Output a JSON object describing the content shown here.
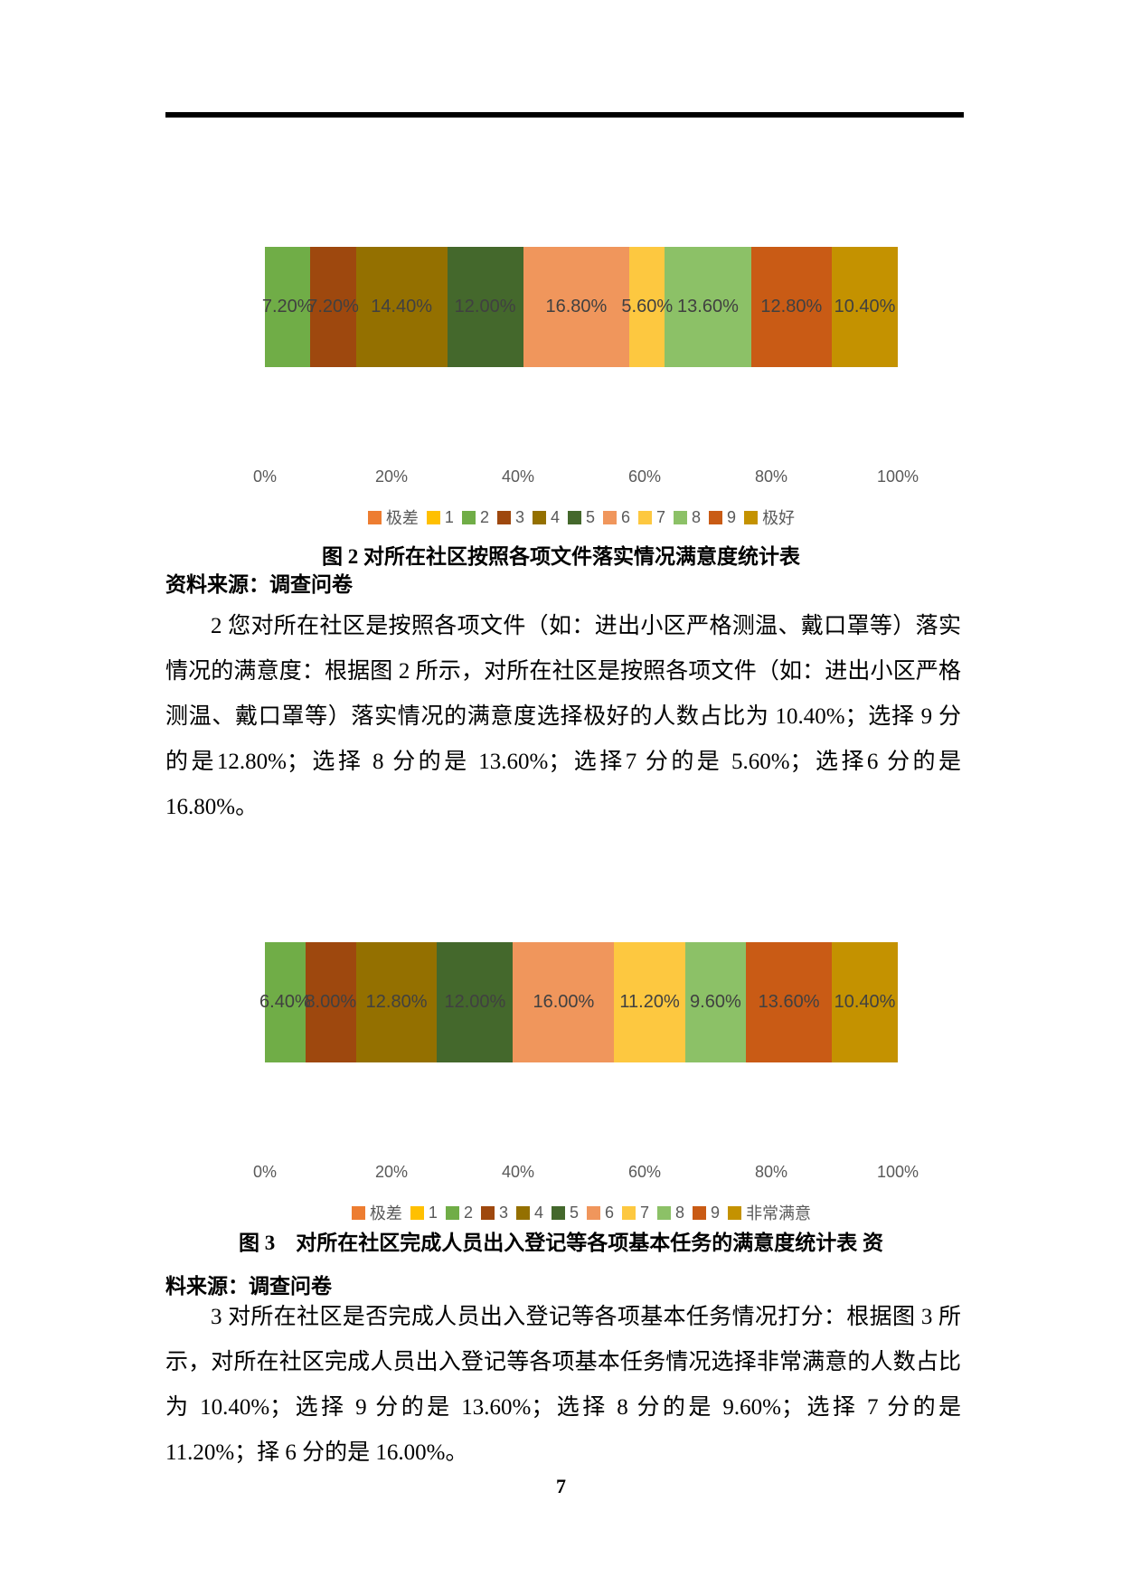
{
  "page": {
    "number": "7"
  },
  "figures": [
    {
      "caption": "图 2 对所在社区按照各项文件落实情况满意度统计表",
      "source": "资料来源：调查问卷"
    },
    {
      "caption_line1": "图 3　对所在社区完成人员出入登记等各项基本任务的满意度统计表 资",
      "caption_line2": "料来源：调查问卷"
    }
  ],
  "paragraphs": [
    "2 您对所在社区是按照各项文件（如：进出小区严格测温、戴口罩等）落实情况的满意度：根据图 2 所示，对所在社区是按照各项文件（如：进出小区严格测温、戴口罩等）落实情况的满意度选择极好的人数占比为 10.40%；选择 9 分的是12.80%；选择 8 分的是 13.60%；选择7 分的是 5.60%；选择6 分的是 16.80%。",
    "3 对所在社区是否完成人员出入登记等各项基本任务情况打分：根据图 3 所示，对所在社区完成人员出入登记等各项基本任务情况选择非常满意的人数占比为 10.40%；选择 9 分的是 13.60%；选择 8 分的是 9.60%；选择 7 分的是 11.20%；择 6 分的是 16.00%。",
    "择 6 分的是 16.00%。"
  ],
  "colors": {
    "bar_label": "#404040",
    "axis_text": "#595959",
    "legend_text": "#595959",
    "rule": "#000000"
  },
  "chart_data": [
    {
      "type": "bar",
      "stacked": true,
      "orientation": "horizontal",
      "title": "图 2 对所在社区按照各项文件落实情况满意度统计表",
      "xlabel": "",
      "ylabel": "",
      "xlim": [
        0,
        100
      ],
      "x_ticks": [
        "0%",
        "20%",
        "40%",
        "60%",
        "80%",
        "100%"
      ],
      "grid": false,
      "legend_position": "bottom",
      "series": [
        {
          "name": "极差",
          "value": 0,
          "label": "",
          "color": "#ED7D31"
        },
        {
          "name": "1",
          "value": 0,
          "label": "",
          "color": "#FFC000"
        },
        {
          "name": "2",
          "value": 7.2,
          "label": "7.20%",
          "color": "#70AD47"
        },
        {
          "name": "3",
          "value": 7.2,
          "label": "7.20%",
          "color": "#9E480E"
        },
        {
          "name": "4",
          "value": 14.4,
          "label": "14.40%",
          "color": "#947000"
        },
        {
          "name": "5",
          "value": 12.0,
          "label": "12.00%",
          "color": "#44682C"
        },
        {
          "name": "6",
          "value": 16.8,
          "label": "16.80%",
          "color": "#F0965C"
        },
        {
          "name": "7",
          "value": 5.6,
          "label": "5.60%",
          "color": "#FDC840"
        },
        {
          "name": "8",
          "value": 13.6,
          "label": "13.60%",
          "color": "#8CC167"
        },
        {
          "name": "9",
          "value": 12.8,
          "label": "12.80%",
          "color": "#C95B15"
        },
        {
          "name": "极好",
          "value": 10.4,
          "label": "10.40%",
          "color": "#C49200"
        }
      ]
    },
    {
      "type": "bar",
      "stacked": true,
      "orientation": "horizontal",
      "title": "图 3 对所在社区完成人员出入登记等各项基本任务的满意度统计表",
      "xlabel": "",
      "ylabel": "",
      "xlim": [
        0,
        100
      ],
      "x_ticks": [
        "0%",
        "20%",
        "40%",
        "60%",
        "80%",
        "100%"
      ],
      "grid": false,
      "legend_position": "bottom",
      "series": [
        {
          "name": "极差",
          "value": 0,
          "label": "",
          "color": "#ED7D31"
        },
        {
          "name": "1",
          "value": 0,
          "label": "",
          "color": "#FFC000"
        },
        {
          "name": "2",
          "value": 6.4,
          "label": "6.40%",
          "color": "#70AD47"
        },
        {
          "name": "3",
          "value": 8.0,
          "label": "8.00%",
          "color": "#9E480E"
        },
        {
          "name": "4",
          "value": 12.8,
          "label": "12.80%",
          "color": "#947000"
        },
        {
          "name": "5",
          "value": 12.0,
          "label": "12.00%",
          "color": "#44682C"
        },
        {
          "name": "6",
          "value": 16.0,
          "label": "16.00%",
          "color": "#F0965C"
        },
        {
          "name": "7",
          "value": 11.2,
          "label": "11.20%",
          "color": "#FDC840"
        },
        {
          "name": "8",
          "value": 9.6,
          "label": "9.60%",
          "color": "#8CC167"
        },
        {
          "name": "9",
          "value": 13.6,
          "label": "13.60%",
          "color": "#C95B15"
        },
        {
          "name": "非常满意",
          "value": 10.4,
          "label": "10.40%",
          "color": "#C49200"
        }
      ]
    }
  ]
}
